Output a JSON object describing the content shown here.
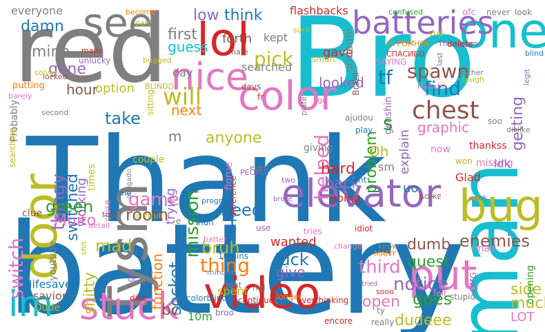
{
  "palette": {
    "blue": "#1f77b4",
    "cyan": "#17becf",
    "red": "#d62728",
    "gray": "#7f7f7f",
    "pink": "#e377c2",
    "olive": "#bcbd22",
    "purple": "#9467bd",
    "green": "#2ca02c",
    "orange": "#ff7f0e",
    "brown": "#8c564b"
  },
  "words": [
    {
      "text": "Thank",
      "color": "blue"
    },
    {
      "text": "battery",
      "color": "blue"
    },
    {
      "text": "Bro",
      "color": "cyan"
    },
    {
      "text": "red",
      "color": "gray"
    },
    {
      "text": "man",
      "color": "cyan"
    },
    {
      "text": "see",
      "color": "gray"
    },
    {
      "text": "lol",
      "color": "red"
    },
    {
      "text": "nice",
      "color": "pink"
    },
    {
      "text": "one",
      "color": "cyan"
    },
    {
      "text": "color",
      "color": "pink"
    },
    {
      "text": "door",
      "color": "olive"
    },
    {
      "text": "Tysm",
      "color": "gray"
    },
    {
      "text": "elevator",
      "color": "purple"
    },
    {
      "text": "bug",
      "color": "olive"
    },
    {
      "text": "put",
      "color": "pink"
    },
    {
      "text": "video",
      "color": "red"
    },
    {
      "text": "stuck",
      "color": "pink"
    },
    {
      "text": "im",
      "color": "cyan"
    },
    {
      "text": "batteries",
      "color": "purple"
    },
    {
      "text": "everyone",
      "color": "gray"
    },
    {
      "text": "damn",
      "color": "blue"
    },
    {
      "text": "mine",
      "color": "gray"
    },
    {
      "text": "gone",
      "color": "purple"
    },
    {
      "text": "hour",
      "color": "brown"
    },
    {
      "text": "low",
      "color": "purple"
    },
    {
      "text": "first",
      "color": "gray"
    },
    {
      "text": "guess",
      "color": "cyan"
    },
    {
      "text": "think",
      "color": "blue"
    },
    {
      "text": "forth",
      "color": "brown"
    },
    {
      "text": "kept",
      "color": "gray"
    },
    {
      "text": "flashbacks",
      "color": "red"
    },
    {
      "text": "pick",
      "color": "olive"
    },
    {
      "text": "searched",
      "color": "gray"
    },
    {
      "text": "gave",
      "color": "red"
    },
    {
      "text": "spawn",
      "color": "brown"
    },
    {
      "text": "find",
      "color": "blue"
    },
    {
      "text": "chest",
      "color": "brown"
    },
    {
      "text": "graphic",
      "color": "pink"
    },
    {
      "text": "getting",
      "color": "purple"
    },
    {
      "text": "looked",
      "color": "purple"
    },
    {
      "text": "problem",
      "color": "green"
    },
    {
      "text": "option",
      "color": "olive"
    },
    {
      "text": "will",
      "color": "olive"
    },
    {
      "text": "next",
      "color": "orange"
    },
    {
      "text": "take",
      "color": "blue"
    },
    {
      "text": "anyone",
      "color": "olive"
    },
    {
      "text": "thingy",
      "color": "purple"
    },
    {
      "text": "switched",
      "color": "blue"
    },
    {
      "text": "working",
      "color": "purple"
    },
    {
      "text": "game",
      "color": "pink"
    },
    {
      "text": "mission",
      "color": "green"
    },
    {
      "text": "trying",
      "color": "purple"
    },
    {
      "text": "helped",
      "color": "pink"
    },
    {
      "text": "hard",
      "color": "red"
    },
    {
      "text": "back",
      "color": "purple"
    },
    {
      "text": "need",
      "color": "blue"
    },
    {
      "text": "room",
      "color": "brown"
    },
    {
      "text": "green",
      "color": "green"
    },
    {
      "text": "Muito",
      "color": "pink"
    },
    {
      "text": "switch",
      "color": "pink"
    },
    {
      "text": "mad",
      "color": "olive"
    },
    {
      "text": "bruh",
      "color": "olive"
    },
    {
      "text": "thing",
      "color": "orange"
    },
    {
      "text": "socket",
      "color": "blue"
    },
    {
      "text": "function",
      "color": "orange"
    },
    {
      "text": "fuck",
      "color": "blue"
    },
    {
      "text": "give",
      "color": "purple"
    },
    {
      "text": "wanted",
      "color": "red"
    },
    {
      "text": "third",
      "color": "pink"
    },
    {
      "text": "quest",
      "color": "green"
    },
    {
      "text": "dumb",
      "color": "brown"
    },
    {
      "text": "enemies",
      "color": "brown"
    },
    {
      "text": "notice",
      "color": "purple"
    },
    {
      "text": "open",
      "color": "pink"
    },
    {
      "text": "goes",
      "color": "green"
    },
    {
      "text": "side",
      "color": "olive"
    },
    {
      "text": "much",
      "color": "olive"
    },
    {
      "text": "LOT",
      "color": "pink"
    },
    {
      "text": "dudeee",
      "color": "olive"
    },
    {
      "text": "bc",
      "color": "brown"
    },
    {
      "text": "10m",
      "color": "green"
    },
    {
      "text": "shitty",
      "color": "olive"
    },
    {
      "text": "lifesaver",
      "color": "blue"
    },
    {
      "text": "savior",
      "color": "brown"
    },
    {
      "text": "Dude",
      "color": "olive"
    },
    {
      "text": "youtube",
      "color": "gray"
    },
    {
      "text": "spent",
      "color": "olive"
    },
    {
      "text": "colorblind",
      "color": "blue"
    },
    {
      "text": "continue",
      "color": "red"
    },
    {
      "text": "broo",
      "color": "purple"
    },
    {
      "text": "overthinking",
      "color": "red"
    },
    {
      "text": "longer",
      "color": "orange"
    },
    {
      "text": "encore",
      "color": "red"
    },
    {
      "text": "really",
      "color": "gray"
    },
    {
      "text": "felt",
      "color": "pink"
    },
    {
      "text": "Probably",
      "color": "gray"
    },
    {
      "text": "made",
      "color": "red"
    },
    {
      "text": "solver",
      "color": "olive"
    },
    {
      "text": "unlucky",
      "color": "purple"
    },
    {
      "text": "bugged",
      "color": "olive"
    },
    {
      "text": "putting",
      "color": "orange"
    },
    {
      "text": "barely",
      "color": "pink"
    },
    {
      "text": "locked",
      "color": "brown"
    },
    {
      "text": "second",
      "color": "gray"
    },
    {
      "text": "searching",
      "color": "olive"
    },
    {
      "text": "become",
      "color": "orange"
    },
    {
      "text": "part",
      "color": "olive"
    },
    {
      "text": "day",
      "color": "gray"
    },
    {
      "text": "hate",
      "color": "brown"
    },
    {
      "text": "suck",
      "color": "olive"
    },
    {
      "text": "smart",
      "color": "olive"
    },
    {
      "text": "godamn",
      "color": "gray"
    },
    {
      "text": "confused",
      "color": "green"
    },
    {
      "text": "ofc",
      "color": "pink"
    },
    {
      "text": "never",
      "color": "gray"
    },
    {
      "text": "look",
      "color": "gray"
    },
    {
      "text": "yup",
      "color": "olive"
    },
    {
      "text": "ОГРОМНОЕ",
      "color": "orange"
    },
    {
      "text": "СПАСИБО",
      "color": "red"
    },
    {
      "text": "Thanksbro",
      "color": "purple"
    },
    {
      "text": "delete",
      "color": "red"
    },
    {
      "text": "blind",
      "color": "blue"
    },
    {
      "text": "SAYING",
      "color": "pink"
    },
    {
      "text": "legit",
      "color": "purple"
    },
    {
      "text": "father",
      "color": "gray"
    },
    {
      "text": "last",
      "color": "gray"
    },
    {
      "text": "tf",
      "color": "blue"
    },
    {
      "text": "Brazil",
      "color": "brown"
    },
    {
      "text": "BLINDD",
      "color": "olive"
    },
    {
      "text": "Hahaha",
      "color": "pink"
    },
    {
      "text": "tough",
      "color": "olive"
    },
    {
      "text": "sitting",
      "color": "olive"
    },
    {
      "text": "devs",
      "color": "brown"
    },
    {
      "text": "fr",
      "color": "red"
    },
    {
      "text": "plate",
      "color": "gray"
    },
    {
      "text": "go",
      "color": "pink"
    },
    {
      "text": "genshin",
      "color": "purple"
    },
    {
      "text": "ajudou",
      "color": "gray"
    },
    {
      "text": "play",
      "color": "blue"
    },
    {
      "text": "soo",
      "color": "gray"
    },
    {
      "text": "dislike",
      "color": "gray"
    },
    {
      "text": "s",
      "color": "green"
    },
    {
      "text": "explain",
      "color": "purple"
    },
    {
      "text": "now",
      "color": "pink"
    },
    {
      "text": "won",
      "color": "olive"
    },
    {
      "text": "thankss",
      "color": "red"
    },
    {
      "text": "missing",
      "color": "pink"
    },
    {
      "text": "idk",
      "color": "purple"
    },
    {
      "text": "Oh",
      "color": "olive"
    },
    {
      "text": "sm",
      "color": "gray"
    },
    {
      "text": "giving",
      "color": "gray"
    },
    {
      "text": "m",
      "color": "gray"
    },
    {
      "text": "couple",
      "color": "olive"
    },
    {
      "text": "obrigado",
      "color": "gray"
    },
    {
      "text": "times",
      "color": "olive"
    },
    {
      "text": "figrue",
      "color": "pink"
    },
    {
      "text": "difference",
      "color": "red"
    },
    {
      "text": "even",
      "color": "gray"
    },
    {
      "text": "PEOPLE",
      "color": "purple"
    },
    {
      "text": "two",
      "color": "purple"
    },
    {
      "text": "fight",
      "color": "blue"
    },
    {
      "text": "uo",
      "color": "blue"
    },
    {
      "text": "БОЖЕ",
      "color": "brown"
    },
    {
      "text": "Glad",
      "color": "red"
    },
    {
      "text": "work",
      "color": "gray"
    },
    {
      "text": "going",
      "color": "red"
    },
    {
      "text": "clue",
      "color": "brown"
    },
    {
      "text": "difficult",
      "color": "olive"
    },
    {
      "text": "close",
      "color": "pink"
    },
    {
      "text": "come",
      "color": "blue"
    },
    {
      "text": "took",
      "color": "brown"
    },
    {
      "text": "progress",
      "color": "blue"
    },
    {
      "text": "broke",
      "color": "purple"
    },
    {
      "text": "huh",
      "color": "blue"
    },
    {
      "text": "e",
      "color": "gray"
    },
    {
      "text": "t",
      "color": "blue"
    },
    {
      "text": "tries",
      "color": "pink"
    },
    {
      "text": "idiot",
      "color": "red"
    },
    {
      "text": "lmao",
      "color": "pink"
    },
    {
      "text": "detail",
      "color": "pink"
    },
    {
      "text": "shit",
      "color": "olive"
    },
    {
      "text": "got",
      "color": "purple"
    },
    {
      "text": "batter",
      "color": "pink"
    },
    {
      "text": "10mins",
      "color": "blue"
    },
    {
      "text": "minute",
      "color": "gray"
    },
    {
      "text": "dont",
      "color": "gray"
    },
    {
      "text": "ngl",
      "color": "gray"
    },
    {
      "text": "change",
      "color": "pink"
    },
    {
      "text": "know",
      "color": "gray"
    },
    {
      "text": "MANY",
      "color": "orange"
    },
    {
      "text": "tried",
      "color": "purple"
    },
    {
      "text": "sooo",
      "color": "red"
    },
    {
      "text": "OMG",
      "color": "purple"
    },
    {
      "text": "stupid",
      "color": "gray"
    },
    {
      "text": "opening",
      "color": "green"
    },
    {
      "text": "dint",
      "color": "red"
    },
    {
      "text": "ty",
      "color": "gray"
    },
    {
      "text": "use",
      "color": "purple"
    },
    {
      "text": "c",
      "color": "pink"
    }
  ]
}
